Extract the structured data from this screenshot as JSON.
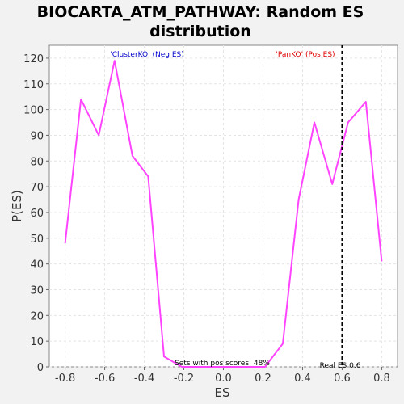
{
  "chart_data": {
    "type": "line",
    "title_line1": "BIOCARTA_ATM_PATHWAY: Random ES",
    "title_line2": "distribution",
    "xlabel": "ES",
    "ylabel": "P(ES)",
    "xlim": [
      -0.88,
      0.88
    ],
    "ylim": [
      0,
      125
    ],
    "x_ticks": [
      -0.8,
      -0.6,
      -0.4,
      -0.2,
      0.0,
      0.2,
      0.4,
      0.6,
      0.8
    ],
    "x_tick_labels": [
      "-0.8",
      "-0.6",
      "-0.4",
      "-0.2",
      "0.0",
      "0.2",
      "0.4",
      "0.6",
      "0.8"
    ],
    "y_ticks": [
      0,
      10,
      20,
      30,
      40,
      50,
      60,
      70,
      80,
      90,
      100,
      110,
      120
    ],
    "y_tick_labels": [
      "0",
      "10",
      "20",
      "30",
      "40",
      "50",
      "60",
      "70",
      "80",
      "90",
      "100",
      "110",
      "120"
    ],
    "grid": true,
    "series": [
      {
        "color": "#ff44ff",
        "x": [
          -0.8,
          -0.72,
          -0.63,
          -0.55,
          -0.46,
          -0.38,
          -0.3,
          -0.21,
          -0.13,
          -0.04,
          0.04,
          0.13,
          0.21,
          0.3,
          0.38,
          0.46,
          0.55,
          0.63,
          0.72,
          0.8
        ],
        "y": [
          48,
          104,
          90,
          119,
          82,
          74,
          4,
          0,
          0,
          0,
          0,
          0,
          0,
          9,
          65,
          95,
          71,
          95,
          103,
          41
        ]
      }
    ],
    "real_es": 0.6,
    "real_es_color": "#000000",
    "annotations": {
      "neg_label": "'ClusterKO' (Neg ES)",
      "neg_color": "#0000cc",
      "pos_label": "'PanKO' (Pos ES)",
      "pos_color": "#dd0000",
      "pos_scores": "Sets with pos scores: 48%",
      "real_es_label": "Real ES 0.6"
    }
  }
}
